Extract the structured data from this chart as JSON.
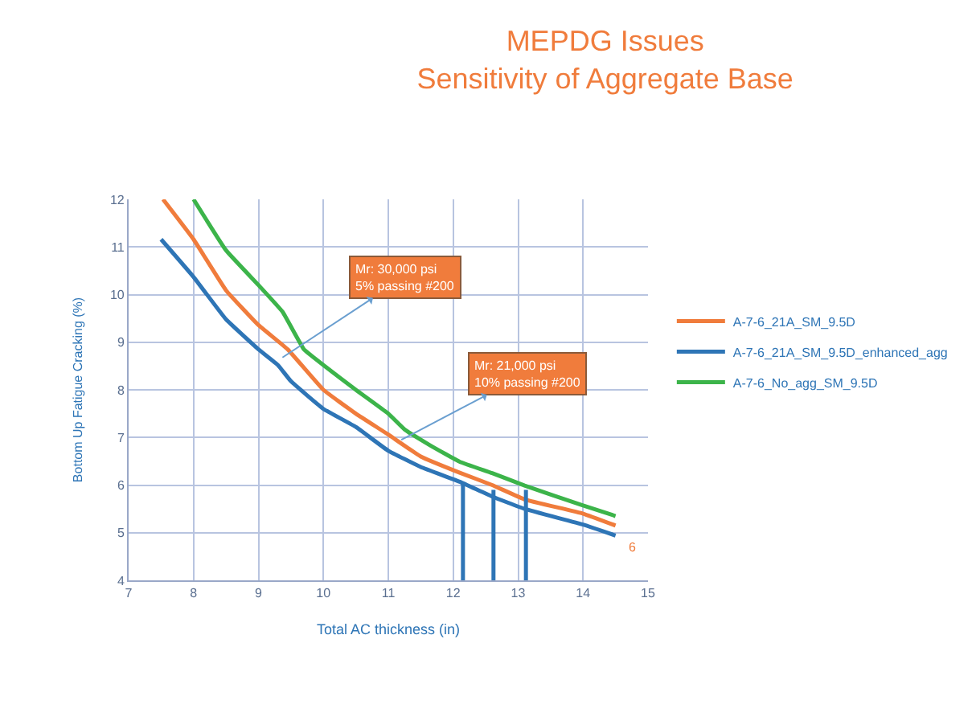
{
  "chart_data": {
    "type": "line",
    "title": "MEPDG Issues\nSensitivity of Aggregate Base",
    "xlabel": "Total AC thickness (in)",
    "ylabel": "Bottom Up Fatigue Cracking (%)",
    "xlim": [
      7,
      15
    ],
    "xticks": [
      7,
      8,
      9,
      10,
      11,
      12,
      13,
      14,
      15
    ],
    "ylim": [
      4,
      12
    ],
    "yticks": [
      4,
      5,
      6,
      7,
      8,
      9,
      10,
      11,
      12
    ],
    "grid": true,
    "legend": "right",
    "marker": "none",
    "line_style": "solid",
    "series": [
      {
        "name": "A-7-6_21A_SM_9.5D",
        "color": "#f07c3c",
        "x": [
          7.53,
          8.0,
          8.5,
          9.0,
          9.45,
          10.0,
          10.5,
          11.0,
          11.5,
          12.1,
          12.6,
          13.1,
          14.0,
          14.5
        ],
        "values": [
          12,
          11.16,
          10.09,
          9.36,
          8.85,
          8.0,
          7.5,
          7.06,
          6.6,
          6.26,
          6.0,
          5.7,
          5.4,
          5.15
        ]
      },
      {
        "name": "A-7-6_21A_SM_9.5D_enhanced_agg",
        "color": "#2e75b6",
        "x": [
          7.5,
          8.0,
          8.5,
          9.0,
          9.3,
          9.5,
          10.0,
          10.5,
          11.0,
          11.5,
          12.1,
          12.6,
          13.1,
          14.0,
          14.5
        ],
        "values": [
          11.16,
          10.37,
          9.48,
          8.85,
          8.52,
          8.18,
          7.6,
          7.22,
          6.72,
          6.38,
          6.07,
          5.76,
          5.5,
          5.17,
          4.94
        ]
      },
      {
        "name": "A-7-6_No_agg_SM_9.5D",
        "color": "#3cb44a",
        "x": [
          8.0,
          8.5,
          9.0,
          9.37,
          9.7,
          10.0,
          10.5,
          11.0,
          11.25,
          11.65,
          12.1,
          12.6,
          13.1,
          14.0,
          14.5
        ],
        "values": [
          12,
          10.93,
          10.2,
          9.64,
          8.85,
          8.52,
          8.0,
          7.5,
          7.17,
          6.83,
          6.49,
          6.25,
          5.99,
          5.57,
          5.35
        ]
      },
      {
        "color": "#2e75b6",
        "x": [
          12.15,
          12.15
        ],
        "values": [
          4,
          6.05
        ]
      },
      {
        "color": "#2e75b6",
        "x": [
          12.62,
          12.62
        ],
        "values": [
          4,
          5.9
        ]
      },
      {
        "color": "#2e75b6",
        "x": [
          13.12,
          13.12
        ],
        "values": [
          4,
          5.9
        ]
      }
    ],
    "annotations": [
      {
        "text": "Mr: 30,000 psi\n5% passing #200",
        "x": 9.37,
        "y": 8.68
      },
      {
        "text": "Mr: 21,000 psi\n10% passing #200",
        "x": 11.2,
        "y": 6.95
      },
      "6"
    ]
  }
}
